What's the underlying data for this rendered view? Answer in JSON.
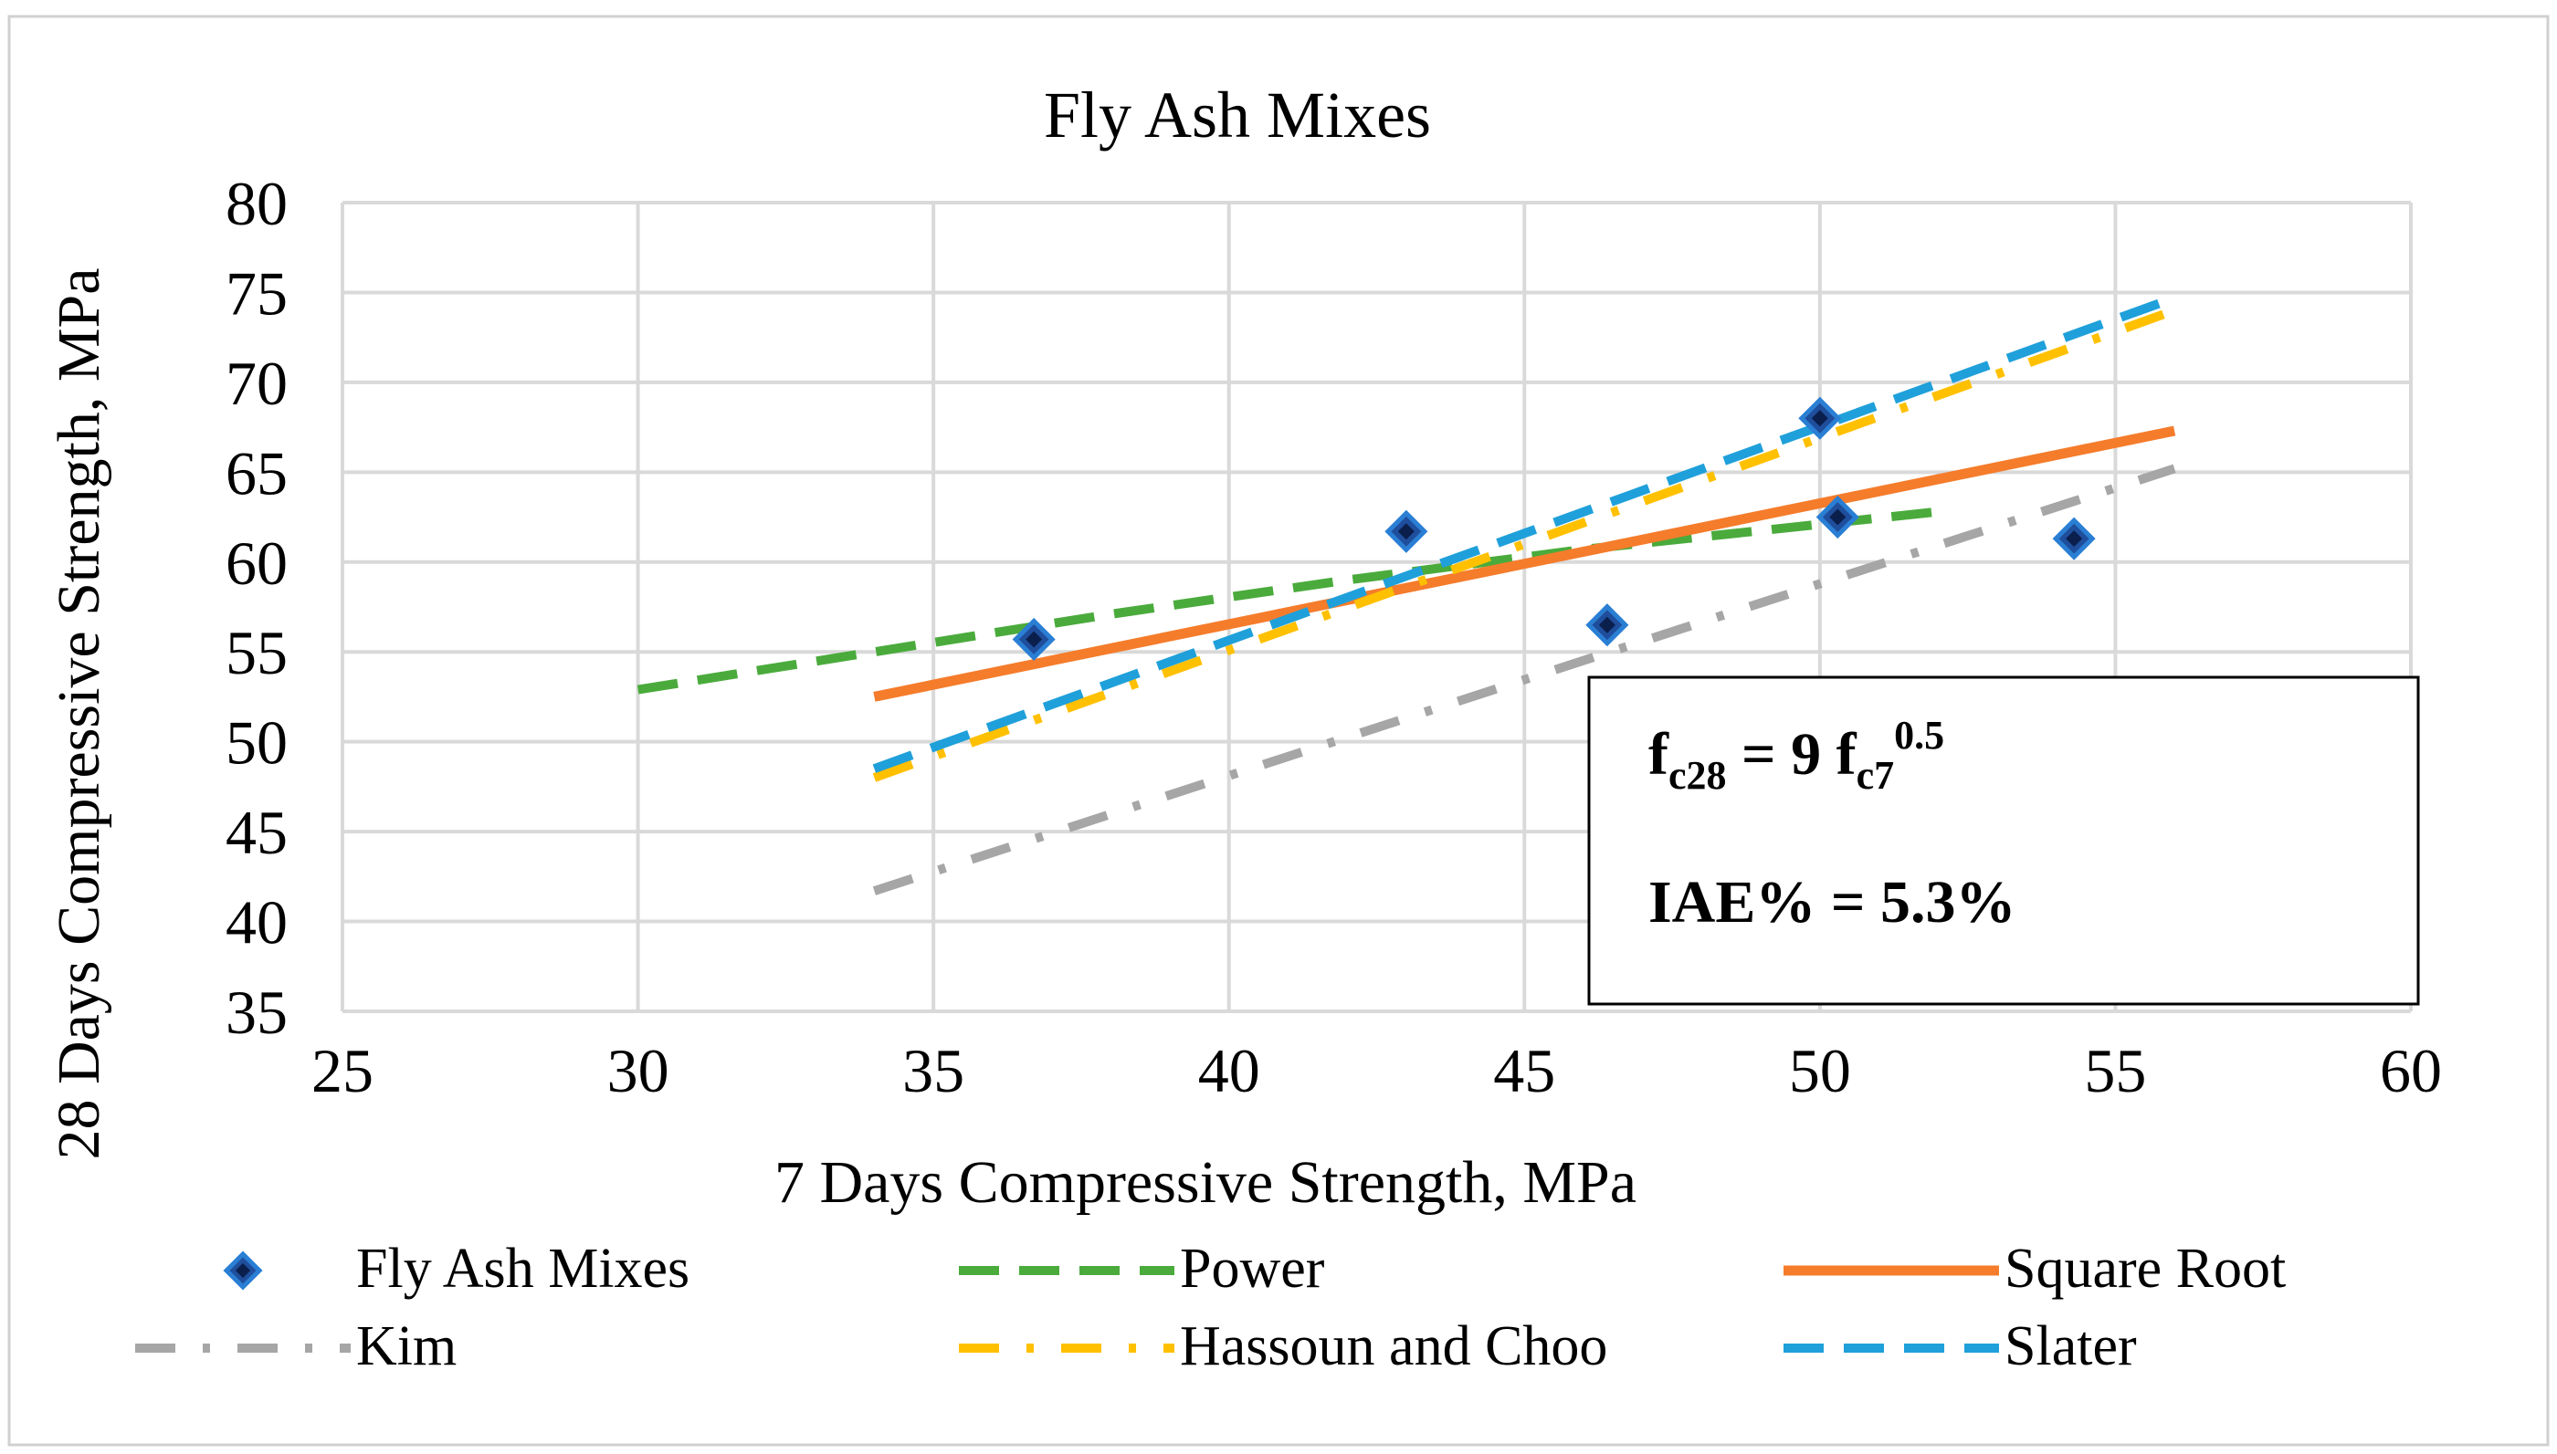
{
  "chart_data": {
    "type": "scatter",
    "title": "Fly Ash Mixes",
    "xlabel": "7 Days Compressive Strength, MPa",
    "ylabel": "28 Days Compressive Strength, MPa",
    "xlim": [
      25,
      60
    ],
    "ylim": [
      35,
      80
    ],
    "x_ticks": [
      "25",
      "30",
      "35",
      "40",
      "45",
      "50",
      "55",
      "60"
    ],
    "y_ticks": [
      "35",
      "40",
      "45",
      "50",
      "55",
      "60",
      "65",
      "70",
      "75",
      "80"
    ],
    "grid": true,
    "legend_position": "bottom",
    "series": [
      {
        "name": "Fly Ash Mixes",
        "kind": "points",
        "color": "#1f4e9c",
        "x": [
          36.7,
          43.0,
          46.4,
          50.0,
          50.3,
          54.3
        ],
        "y": [
          55.7,
          61.7,
          56.5,
          68.0,
          62.5,
          61.3
        ]
      },
      {
        "name": "Power",
        "kind": "line",
        "style": "dashed",
        "color": "#4aab3c",
        "x": [
          30,
          34,
          38,
          42,
          46,
          50,
          52
        ],
        "y": [
          52.9,
          55.0,
          57.1,
          59.0,
          60.7,
          62.1,
          62.8
        ]
      },
      {
        "name": "Square Root",
        "kind": "line",
        "style": "solid",
        "color": "#f57c2b",
        "x": [
          34,
          56
        ],
        "y": [
          52.5,
          67.3
        ]
      },
      {
        "name": "Kim",
        "kind": "line",
        "style": "dash-dot",
        "color": "#a6a6a6",
        "x": [
          34,
          56
        ],
        "y": [
          41.7,
          65.2
        ]
      },
      {
        "name": "Hassoun and Choo",
        "kind": "line",
        "style": "dash-dot",
        "color": "#ffc000",
        "x": [
          34,
          56
        ],
        "y": [
          48.0,
          74.0
        ]
      },
      {
        "name": "Slater",
        "kind": "line",
        "style": "dashed",
        "color": "#1fa0da",
        "x": [
          34,
          56
        ],
        "y": [
          48.5,
          74.7
        ]
      }
    ],
    "annotation": {
      "eq_base": "f",
      "eq_sub1": "c28",
      "eq_mid": " = 9 f",
      "eq_sub2": "c7",
      "eq_sup": "0.5",
      "iae": "IAE% = 5.3%"
    }
  }
}
